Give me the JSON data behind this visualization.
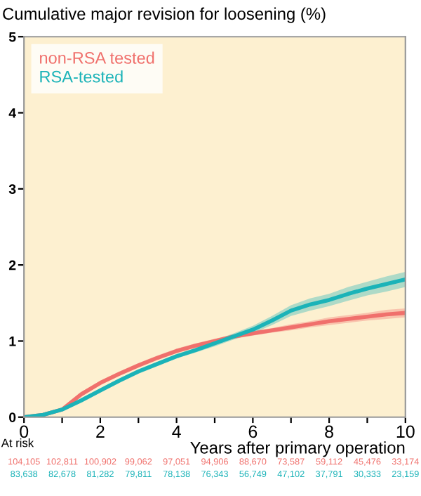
{
  "chart_data": {
    "type": "line",
    "title": "Cumulative major revision for loosening (%)",
    "xlabel": "Years after primary operation",
    "x": [
      0,
      0.5,
      1,
      1.5,
      2,
      2.5,
      3,
      3.5,
      4,
      4.5,
      5,
      5.5,
      6,
      6.5,
      7,
      7.5,
      8,
      8.5,
      9,
      9.5,
      10
    ],
    "series": [
      {
        "name": "non-RSA tested",
        "color": "#f0706c",
        "values": [
          0,
          0.03,
          0.1,
          0.3,
          0.45,
          0.57,
          0.68,
          0.78,
          0.87,
          0.94,
          1.0,
          1.06,
          1.1,
          1.14,
          1.18,
          1.22,
          1.26,
          1.29,
          1.32,
          1.35,
          1.37
        ],
        "lower": [
          0,
          0.02,
          0.08,
          0.27,
          0.42,
          0.54,
          0.65,
          0.75,
          0.84,
          0.91,
          0.97,
          1.03,
          1.07,
          1.11,
          1.14,
          1.18,
          1.21,
          1.24,
          1.27,
          1.29,
          1.31
        ],
        "upper": [
          0,
          0.04,
          0.12,
          0.33,
          0.48,
          0.6,
          0.71,
          0.81,
          0.9,
          0.97,
          1.03,
          1.09,
          1.13,
          1.17,
          1.22,
          1.26,
          1.31,
          1.34,
          1.37,
          1.41,
          1.43
        ]
      },
      {
        "name": "RSA-tested",
        "color": "#1bb3b8",
        "values": [
          0,
          0.03,
          0.1,
          0.22,
          0.35,
          0.48,
          0.6,
          0.7,
          0.8,
          0.88,
          0.97,
          1.06,
          1.15,
          1.27,
          1.4,
          1.48,
          1.54,
          1.62,
          1.69,
          1.75,
          1.81
        ],
        "lower": [
          0,
          0.02,
          0.08,
          0.19,
          0.32,
          0.45,
          0.57,
          0.67,
          0.77,
          0.85,
          0.93,
          1.02,
          1.1,
          1.21,
          1.33,
          1.4,
          1.46,
          1.53,
          1.6,
          1.65,
          1.71
        ],
        "upper": [
          0,
          0.04,
          0.12,
          0.25,
          0.38,
          0.51,
          0.63,
          0.73,
          0.83,
          0.91,
          1.01,
          1.1,
          1.2,
          1.33,
          1.47,
          1.56,
          1.62,
          1.71,
          1.78,
          1.85,
          1.91
        ]
      }
    ],
    "xlim": [
      0,
      10
    ],
    "xticks": [
      0,
      {
        "value": 1,
        "label": null
      },
      2,
      {
        "value": 3,
        "label": null
      },
      4,
      {
        "value": 5,
        "label": null
      },
      6,
      {
        "value": 7,
        "label": null
      },
      8,
      {
        "value": 9,
        "label": null
      },
      10
    ],
    "ylim": [
      0,
      5
    ],
    "yticks": [
      0,
      1,
      2,
      3,
      4,
      5
    ],
    "grid": false,
    "legend": "top left",
    "annotations": [
      "At risk",
      "104,105",
      "102,811",
      "100,902",
      "99,062",
      "97,051",
      "94,906",
      "88,670",
      "73,587",
      "59,112",
      "45,476",
      "33,174",
      "83,638",
      "82,678",
      "81,282",
      "79,811",
      "78,138",
      "76,343",
      "56,749",
      "47,102",
      "37,791",
      "30,333",
      "23,159"
    ]
  }
}
